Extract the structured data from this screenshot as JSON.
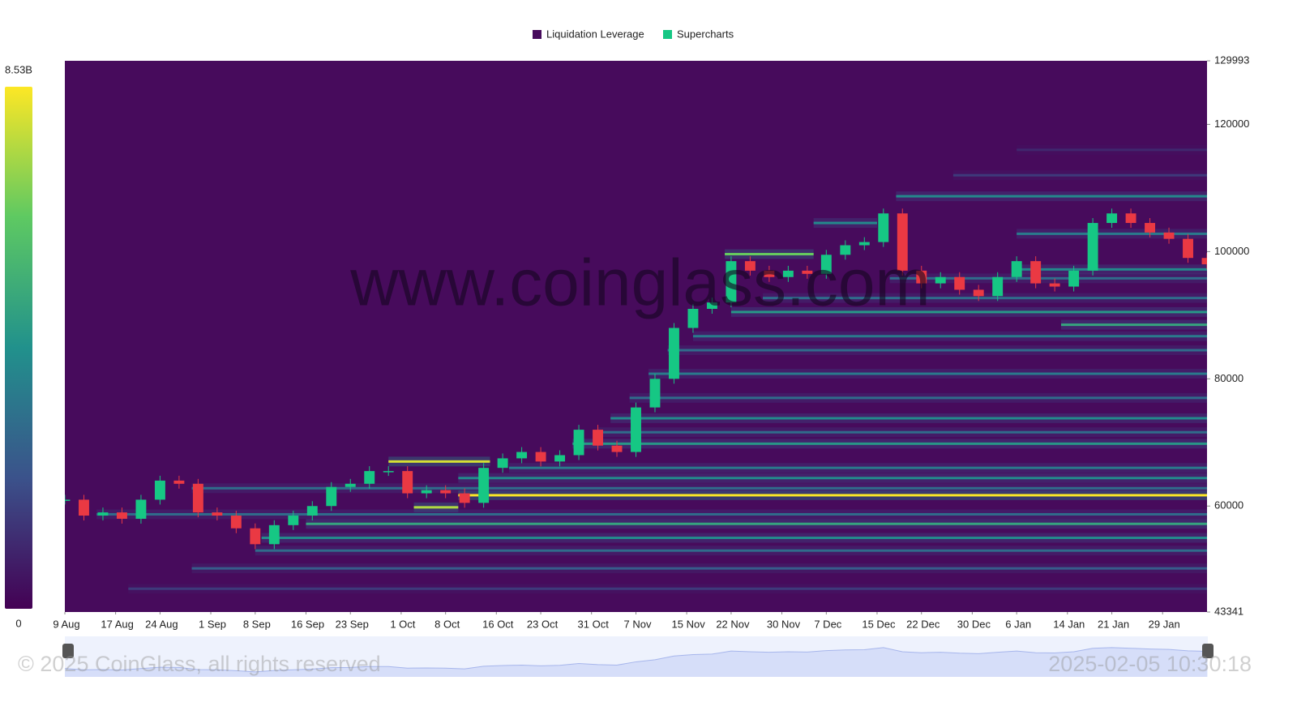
{
  "chart_data": {
    "type": "heatmap",
    "watermark": "www.coinglass.com",
    "copyright": "© 2025 CoinGlass, all rights reserved",
    "timestamp": "2025-02-05 10:30:18",
    "xlim": [
      0,
      180
    ],
    "xticks": [
      {
        "value": 0,
        "label": "9 Aug"
      },
      {
        "value": 8,
        "label": "17 Aug"
      },
      {
        "value": 15,
        "label": "24 Aug"
      },
      {
        "value": 23,
        "label": "1 Sep"
      },
      {
        "value": 30,
        "label": "8 Sep"
      },
      {
        "value": 38,
        "label": "16 Sep"
      },
      {
        "value": 45,
        "label": "23 Sep"
      },
      {
        "value": 53,
        "label": "1 Oct"
      },
      {
        "value": 60,
        "label": "8 Oct"
      },
      {
        "value": 68,
        "label": "16 Oct"
      },
      {
        "value": 75,
        "label": "23 Oct"
      },
      {
        "value": 83,
        "label": "31 Oct"
      },
      {
        "value": 90,
        "label": "7 Nov"
      },
      {
        "value": 98,
        "label": "15 Nov"
      },
      {
        "value": 105,
        "label": "22 Nov"
      },
      {
        "value": 113,
        "label": "30 Nov"
      },
      {
        "value": 120,
        "label": "7 Dec"
      },
      {
        "value": 128,
        "label": "15 Dec"
      },
      {
        "value": 135,
        "label": "22 Dec"
      },
      {
        "value": 143,
        "label": "30 Dec"
      },
      {
        "value": 150,
        "label": "6 Jan"
      },
      {
        "value": 158,
        "label": "14 Jan"
      },
      {
        "value": 165,
        "label": "21 Jan"
      },
      {
        "value": 173,
        "label": "29 Jan"
      }
    ],
    "ylim": [
      43341,
      129993
    ],
    "yticks": [
      43341,
      60000,
      80000,
      100000,
      120000,
      129993
    ],
    "clim": [
      0,
      8530000000
    ],
    "cticks": [
      0,
      {
        "value": 8530000000,
        "label": "8.53B"
      }
    ],
    "colorscale": [
      "#440154",
      "#3b528b",
      "#21918c",
      "#5ec962",
      "#fde725"
    ],
    "series": [
      {
        "name": "Liquidation Leverage",
        "color": "#470b5c",
        "levels": [
          {
            "price": 61700,
            "start": 62,
            "end": 180,
            "intensity": 8500000000
          },
          {
            "price": 67000,
            "start": 51,
            "end": 67,
            "intensity": 8000000000
          },
          {
            "price": 59800,
            "start": 55,
            "end": 62,
            "intensity": 7500000000
          },
          {
            "price": 99600,
            "start": 104,
            "end": 118,
            "intensity": 6500000000
          },
          {
            "price": 108700,
            "start": 131,
            "end": 180,
            "intensity": 4000000000
          },
          {
            "price": 88500,
            "start": 157,
            "end": 180,
            "intensity": 5000000000
          },
          {
            "price": 90500,
            "start": 105,
            "end": 180,
            "intensity": 4500000000
          },
          {
            "price": 102800,
            "start": 150,
            "end": 180,
            "intensity": 3500000000
          },
          {
            "price": 104500,
            "start": 118,
            "end": 128,
            "intensity": 4000000000
          },
          {
            "price": 57200,
            "start": 38,
            "end": 180,
            "intensity": 5000000000
          },
          {
            "price": 64400,
            "start": 62,
            "end": 180,
            "intensity": 4000000000
          },
          {
            "price": 69800,
            "start": 80,
            "end": 180,
            "intensity": 4500000000
          },
          {
            "price": 73800,
            "start": 86,
            "end": 180,
            "intensity": 4000000000
          },
          {
            "price": 77000,
            "start": 89,
            "end": 180,
            "intensity": 3000000000
          },
          {
            "price": 80800,
            "start": 92,
            "end": 180,
            "intensity": 3500000000
          },
          {
            "price": 84500,
            "start": 95,
            "end": 180,
            "intensity": 3000000000
          },
          {
            "price": 55000,
            "start": 31,
            "end": 180,
            "intensity": 4000000000
          },
          {
            "price": 53000,
            "start": 30,
            "end": 180,
            "intensity": 3000000000
          },
          {
            "price": 50200,
            "start": 20,
            "end": 180,
            "intensity": 2500000000
          },
          {
            "price": 47000,
            "start": 10,
            "end": 180,
            "intensity": 1500000000
          },
          {
            "price": 62800,
            "start": 20,
            "end": 180,
            "intensity": 3000000000
          },
          {
            "price": 58700,
            "start": 5,
            "end": 180,
            "intensity": 3000000000
          },
          {
            "price": 66000,
            "start": 70,
            "end": 180,
            "intensity": 3500000000
          },
          {
            "price": 71600,
            "start": 84,
            "end": 180,
            "intensity": 3000000000
          },
          {
            "price": 86700,
            "start": 99,
            "end": 180,
            "intensity": 3500000000
          },
          {
            "price": 92700,
            "start": 110,
            "end": 180,
            "intensity": 3000000000
          },
          {
            "price": 95800,
            "start": 130,
            "end": 180,
            "intensity": 3000000000
          },
          {
            "price": 97200,
            "start": 150,
            "end": 180,
            "intensity": 4000000000
          },
          {
            "price": 112000,
            "start": 140,
            "end": 180,
            "intensity": 1500000000
          },
          {
            "price": 116000,
            "start": 150,
            "end": 180,
            "intensity": 1000000000
          }
        ]
      },
      {
        "name": "Supercharts",
        "color": "#16c784",
        "down_color": "#ea3943",
        "x": [
          0,
          3,
          6,
          9,
          12,
          15,
          18,
          21,
          24,
          27,
          30,
          33,
          36,
          39,
          42,
          45,
          48,
          51,
          54,
          57,
          60,
          63,
          66,
          69,
          72,
          75,
          78,
          81,
          84,
          87,
          90,
          93,
          96,
          99,
          102,
          105,
          108,
          111,
          114,
          117,
          120,
          123,
          126,
          129,
          132,
          135,
          138,
          141,
          144,
          147,
          150,
          153,
          156,
          159,
          162,
          165,
          168,
          171,
          174,
          177,
          180
        ],
        "values": [
          61000,
          58500,
          59000,
          58000,
          61000,
          64000,
          63500,
          59000,
          58500,
          56500,
          54000,
          57000,
          58500,
          60000,
          63000,
          63500,
          65500,
          65500,
          62000,
          62500,
          62000,
          60500,
          66000,
          67500,
          68500,
          67000,
          68000,
          72000,
          69500,
          68500,
          75500,
          80000,
          88000,
          91000,
          92000,
          98500,
          97000,
          96000,
          97000,
          96500,
          99500,
          101000,
          101500,
          106000,
          97000,
          95000,
          96000,
          94000,
          93000,
          96000,
          98500,
          95000,
          94500,
          97000,
          104500,
          106000,
          104500,
          103000,
          102000,
          99000,
          98000
        ]
      }
    ]
  }
}
